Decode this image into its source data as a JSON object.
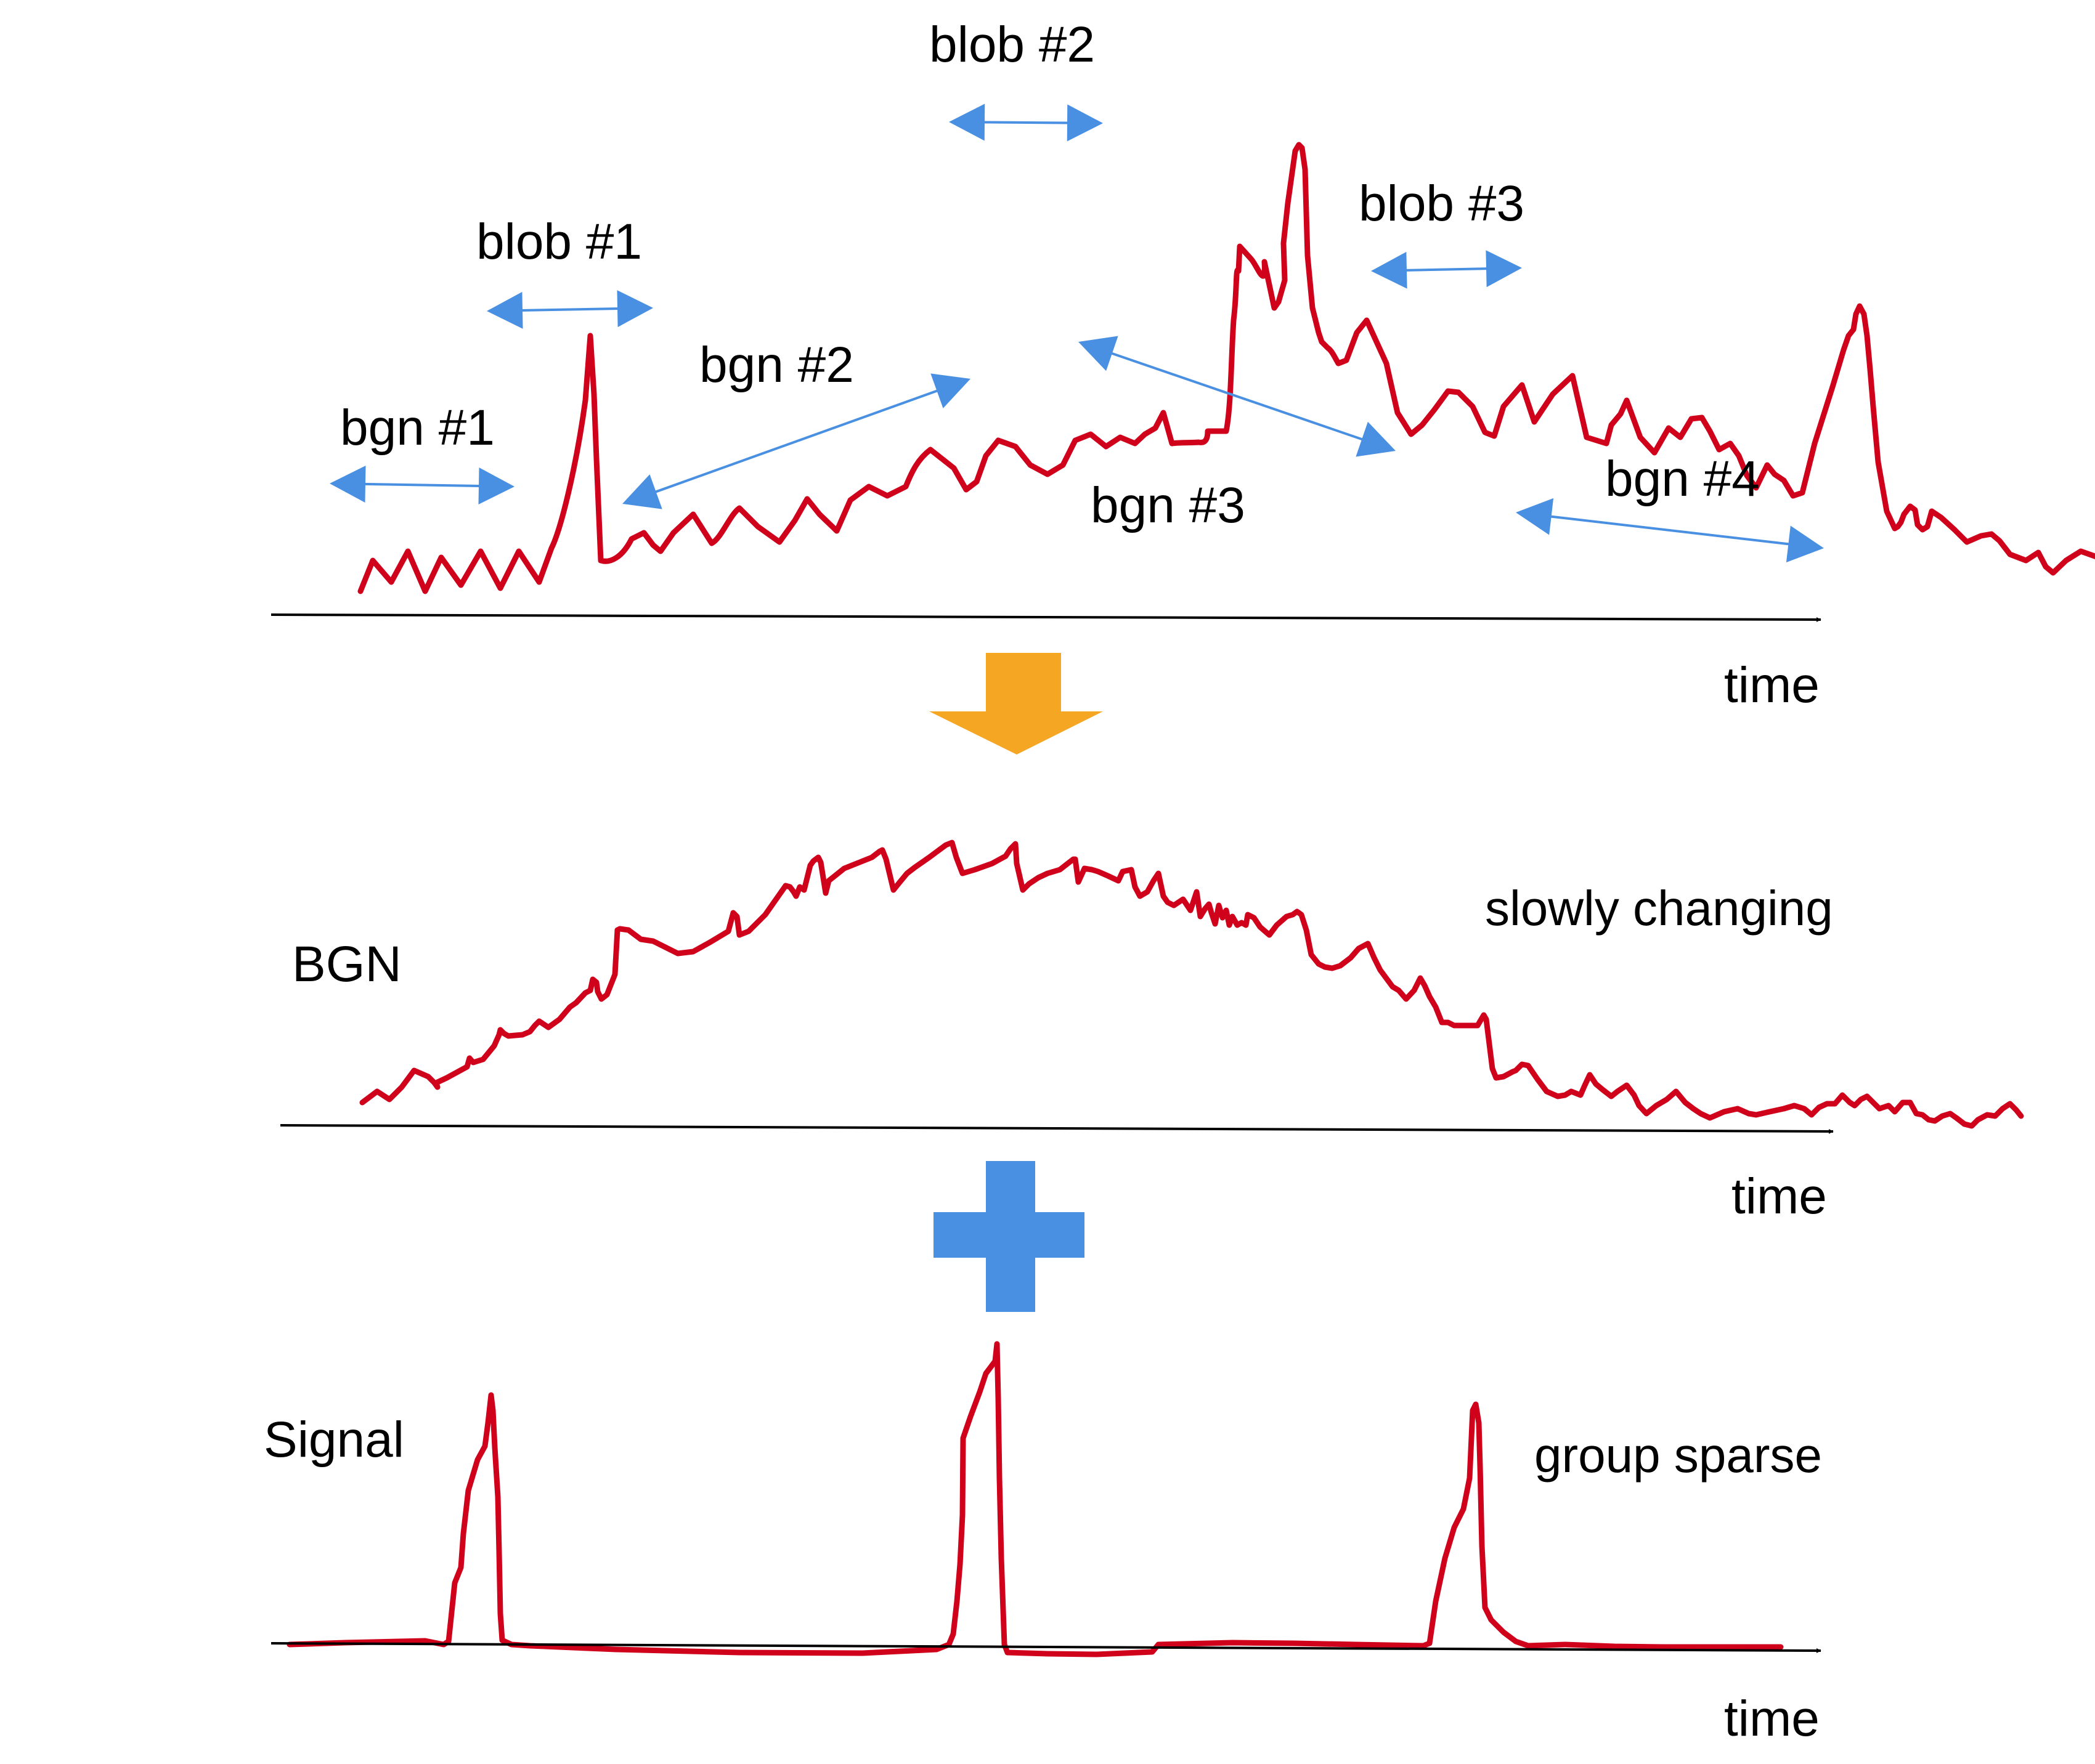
{
  "colors": {
    "signal": "#d0021b",
    "span_arrow": "#4a90e2",
    "axis": "#000000",
    "down_arrow": "#f5a623",
    "plus": "#4a90e2"
  },
  "icons": {
    "transition": "down-arrow-icon",
    "combine": "plus-icon"
  },
  "top_panel": {
    "segments": [
      {
        "key": "bgn1",
        "label": "bgn #1"
      },
      {
        "key": "blob1",
        "label": "blob #1"
      },
      {
        "key": "bgn2",
        "label": "bgn #2"
      },
      {
        "key": "blob2",
        "label": "blob #2"
      },
      {
        "key": "bgn3",
        "label": "bgn #3"
      },
      {
        "key": "blob3",
        "label": "blob #3"
      },
      {
        "key": "bgn4",
        "label": "bgn #4"
      }
    ],
    "axis_label": "time"
  },
  "background_panel": {
    "title": "BGN",
    "note": "slowly changing",
    "axis_label": "time"
  },
  "signal_panel": {
    "title": "Signal",
    "note": "group sparse",
    "axis_label": "time"
  }
}
